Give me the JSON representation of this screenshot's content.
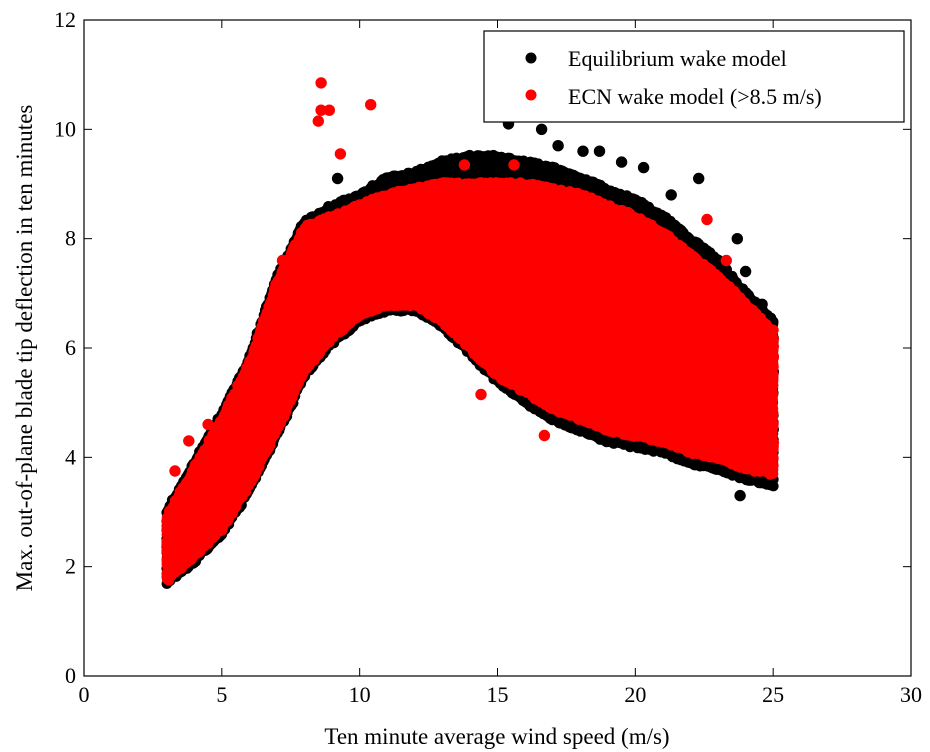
{
  "chart_data": {
    "type": "scatter",
    "title": "",
    "xlabel": "Ten minute average wind speed (m/s)",
    "ylabel": "Max. out-of-plane blade tip deflection in ten minutes",
    "xlim": [
      0,
      30
    ],
    "ylim": [
      0,
      12
    ],
    "xticks": [
      0,
      5,
      10,
      15,
      20,
      25,
      30
    ],
    "yticks": [
      0,
      2,
      4,
      6,
      8,
      10,
      12
    ],
    "grid": false,
    "legend_position": "top-right",
    "series": [
      {
        "name": "Equilibrium wake model",
        "color": "#000000",
        "band": {
          "x": [
            3.0,
            4.0,
            5.0,
            6.0,
            7.0,
            8.0,
            9.0,
            10.0,
            11.0,
            12.0,
            13.0,
            14.0,
            15.0,
            16.0,
            17.0,
            18.0,
            19.0,
            20.0,
            21.0,
            22.0,
            23.0,
            24.0,
            25.0
          ],
          "lower": [
            1.7,
            2.1,
            2.6,
            3.4,
            4.4,
            5.5,
            6.1,
            6.5,
            6.7,
            6.7,
            6.4,
            5.9,
            5.4,
            5.0,
            4.7,
            4.5,
            4.3,
            4.2,
            4.1,
            3.9,
            3.8,
            3.6,
            3.5
          ],
          "upper": [
            3.0,
            3.9,
            4.8,
            5.8,
            7.3,
            8.3,
            8.6,
            8.8,
            9.1,
            9.2,
            9.4,
            9.5,
            9.5,
            9.4,
            9.3,
            9.1,
            8.9,
            8.7,
            8.4,
            8.0,
            7.6,
            7.0,
            6.5
          ]
        },
        "outliers": [
          [
            15.4,
            10.1
          ],
          [
            16.6,
            10.0
          ],
          [
            17.2,
            9.7
          ],
          [
            18.1,
            9.6
          ],
          [
            18.7,
            9.6
          ],
          [
            19.5,
            9.4
          ],
          [
            20.3,
            9.3
          ],
          [
            22.3,
            9.1
          ],
          [
            21.3,
            8.8
          ],
          [
            23.7,
            8.0
          ],
          [
            24.0,
            7.4
          ],
          [
            24.6,
            6.8
          ],
          [
            23.8,
            3.3
          ],
          [
            9.2,
            9.1
          ]
        ]
      },
      {
        "name": "ECN wake model (>8.5 m/s)",
        "color": "#ff0000",
        "band": {
          "x": [
            3.0,
            4.0,
            5.0,
            6.0,
            7.0,
            8.0,
            9.0,
            10.0,
            11.0,
            12.0,
            13.0,
            14.0,
            15.0,
            16.0,
            17.0,
            18.0,
            19.0,
            20.0,
            21.0,
            22.0,
            23.0,
            24.0,
            25.0
          ],
          "lower": [
            1.75,
            2.2,
            2.7,
            3.5,
            4.5,
            5.6,
            6.2,
            6.6,
            6.8,
            6.8,
            6.5,
            6.0,
            5.5,
            5.2,
            4.9,
            4.7,
            4.5,
            4.4,
            4.3,
            4.1,
            4.0,
            3.8,
            3.7
          ],
          "upper": [
            2.9,
            3.8,
            4.7,
            5.7,
            7.2,
            8.2,
            8.4,
            8.6,
            8.8,
            8.9,
            9.0,
            9.0,
            9.0,
            9.0,
            8.9,
            8.8,
            8.6,
            8.4,
            8.1,
            7.7,
            7.3,
            6.8,
            6.3
          ]
        },
        "outliers": [
          [
            8.6,
            10.85
          ],
          [
            8.6,
            10.35
          ],
          [
            8.9,
            10.35
          ],
          [
            8.5,
            10.15
          ],
          [
            10.4,
            10.45
          ],
          [
            9.3,
            9.55
          ],
          [
            7.2,
            7.6
          ],
          [
            3.8,
            4.3
          ],
          [
            4.5,
            4.6
          ],
          [
            3.3,
            3.75
          ],
          [
            15.6,
            9.35
          ],
          [
            13.8,
            9.35
          ],
          [
            22.6,
            8.35
          ],
          [
            23.3,
            7.6
          ],
          [
            16.7,
            4.4
          ],
          [
            14.4,
            5.15
          ]
        ]
      }
    ]
  }
}
